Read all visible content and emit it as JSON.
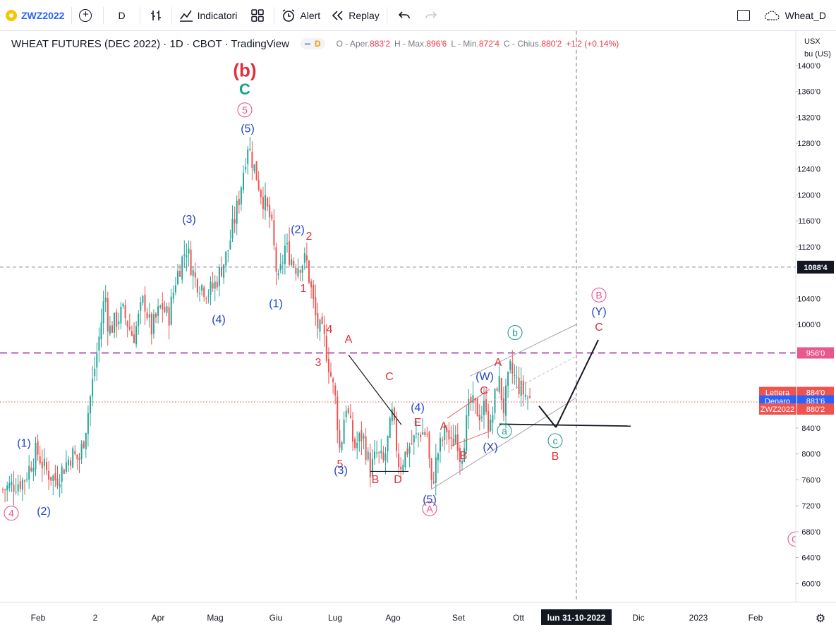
{
  "toolbar": {
    "symbol": "ZWZ2022",
    "interval": "D",
    "indicators_label": "Indicatori",
    "alert_label": "Alert",
    "replay_label": "Replay",
    "layout_name": "Wheat_D"
  },
  "legend": {
    "title": "WHEAT FUTURES (DEC 2022) · 1D · CBOT · TradingView",
    "badge": "D",
    "open_label": "O - Aper.",
    "open": "883'2",
    "high_label": "H - Max.",
    "high": "896'6",
    "low_label": "L - Min.",
    "low": "872'4",
    "close_label": "C - Chius.",
    "close": "880'2",
    "change": "+1'2 (+0.14%)"
  },
  "currency": {
    "line1": "USX",
    "line2": "bu (US)"
  },
  "colors": {
    "up": "#26a69a",
    "down": "#ef5350",
    "red_label": "#e0303b",
    "blue_label": "#2145c8",
    "green_label": "#1f9f8d",
    "pink_label": "#e8578d"
  },
  "chart_data": {
    "type": "candlestick",
    "title": "WHEAT FUTURES (DEC 2022)",
    "y_min": 570,
    "y_max": 1420,
    "y_ticks": [
      {
        "v": 1400,
        "label": "1400'0"
      },
      {
        "v": 1360,
        "label": "1360'0"
      },
      {
        "v": 1320,
        "label": "1320'0"
      },
      {
        "v": 1280,
        "label": "1280'0"
      },
      {
        "v": 1240,
        "label": "1240'0"
      },
      {
        "v": 1200,
        "label": "1200'0"
      },
      {
        "v": 1160,
        "label": "1160'0"
      },
      {
        "v": 1120,
        "label": "1120'0"
      },
      {
        "v": 1040,
        "label": "1040'0"
      },
      {
        "v": 1000,
        "label": "1000'0"
      },
      {
        "v": 840,
        "label": "840'0"
      },
      {
        "v": 800,
        "label": "800'0"
      },
      {
        "v": 760,
        "label": "760'0"
      },
      {
        "v": 720,
        "label": "720'0"
      },
      {
        "v": 680,
        "label": "680'0"
      },
      {
        "v": 640,
        "label": "640'0"
      },
      {
        "v": 600,
        "label": "600'0"
      }
    ],
    "x_ticks": [
      {
        "x": 0,
        "label": "Feb"
      },
      {
        "x": 81,
        "label": "2"
      },
      {
        "x": 170,
        "label": "Apr"
      },
      {
        "x": 251,
        "label": "Mag"
      },
      {
        "x": 337,
        "label": "Giu"
      },
      {
        "x": 421,
        "label": "Lug"
      },
      {
        "x": 503,
        "label": "Ago"
      },
      {
        "x": 596,
        "label": "Set"
      },
      {
        "x": 681,
        "label": "Ott"
      },
      {
        "x": 851,
        "label": "Dic"
      },
      {
        "x": 936,
        "label": "2023"
      },
      {
        "x": 1017,
        "label": "Feb"
      }
    ],
    "crosshair": {
      "x": 763,
      "v": 1088.5,
      "x_label": "lun 31-10-2022",
      "y_label": "1088'4"
    },
    "price_tags": [
      {
        "label": "956'0",
        "v": 956,
        "color": "#e8578d"
      },
      {
        "label_name": "Lettera",
        "label": "884'0",
        "v": 884,
        "color": "#ef5350"
      },
      {
        "label_name": "Denaro",
        "label": "881'6",
        "v": 881.75,
        "color": "#2962ff"
      },
      {
        "label_name": "ZWZ2022",
        "label": "880'2",
        "v": 880.25,
        "color": "#ef5350"
      }
    ],
    "pivots": [
      [
        -50,
        745
      ],
      [
        -20,
        760
      ],
      [
        -18,
        765
      ],
      [
        -10,
        785
      ],
      [
        -2,
        805
      ],
      [
        10,
        775
      ],
      [
        25,
        760
      ],
      [
        48,
        800
      ],
      [
        58,
        790
      ],
      [
        66,
        830
      ],
      [
        84,
        960
      ],
      [
        95,
        1050
      ],
      [
        100,
        990
      ],
      [
        120,
        1020
      ],
      [
        135,
        980
      ],
      [
        150,
        1040
      ],
      [
        160,
        990
      ],
      [
        175,
        1030
      ],
      [
        185,
        1010
      ],
      [
        195,
        1070
      ],
      [
        210,
        1120
      ],
      [
        222,
        1070
      ],
      [
        242,
        1050
      ],
      [
        250,
        1060
      ],
      [
        268,
        1110
      ],
      [
        284,
        1190
      ],
      [
        297,
        1280
      ],
      [
        307,
        1240
      ],
      [
        317,
        1200
      ],
      [
        330,
        1160
      ],
      [
        340,
        1060
      ],
      [
        350,
        1120
      ],
      [
        365,
        1090
      ],
      [
        380,
        1100
      ],
      [
        395,
        1000
      ],
      [
        405,
        980
      ],
      [
        410,
        950
      ],
      [
        422,
        880
      ],
      [
        428,
        800
      ],
      [
        436,
        880
      ],
      [
        448,
        810
      ],
      [
        460,
        830
      ],
      [
        471,
        775
      ],
      [
        480,
        800
      ],
      [
        490,
        785
      ],
      [
        502,
        860
      ],
      [
        512,
        780
      ],
      [
        525,
        810
      ],
      [
        542,
        835
      ],
      [
        552,
        830
      ],
      [
        557,
        745
      ],
      [
        566,
        800
      ],
      [
        579,
        840
      ],
      [
        585,
        810
      ],
      [
        593,
        835
      ],
      [
        599,
        790
      ],
      [
        612,
        880
      ],
      [
        628,
        860
      ],
      [
        635,
        880
      ],
      [
        640,
        830
      ],
      [
        652,
        920
      ],
      [
        660,
        870
      ],
      [
        669,
        930
      ],
      [
        684,
        900
      ],
      [
        700,
        880
      ]
    ],
    "waves": [
      {
        "t": "4",
        "x": -38,
        "v": 703,
        "color": "pink",
        "circle": true
      },
      {
        "t": "(1)",
        "x": -20,
        "v": 811,
        "color": "blue"
      },
      {
        "t": "(2)",
        "x": 8,
        "v": 706,
        "color": "blue"
      },
      {
        "t": "(3)",
        "x": 214,
        "v": 1157,
        "color": "blue"
      },
      {
        "t": "(4)",
        "x": 256,
        "v": 1002,
        "color": "blue"
      },
      {
        "t": "(b)",
        "x": 293,
        "v": 1383,
        "color": "red",
        "big": true
      },
      {
        "t": "C",
        "x": 293,
        "v": 1355,
        "color": "green",
        "big2": true
      },
      {
        "t": "5",
        "x": 293,
        "v": 1326,
        "color": "pink",
        "circle": true
      },
      {
        "t": "(5)",
        "x": 297,
        "v": 1297,
        "color": "blue"
      },
      {
        "t": "(1)",
        "x": 337,
        "v": 1027,
        "color": "blue"
      },
      {
        "t": "(2)",
        "x": 368,
        "v": 1141,
        "color": "blue"
      },
      {
        "t": "2",
        "x": 384,
        "v": 1131,
        "color": "red"
      },
      {
        "t": "1",
        "x": 376,
        "v": 1050,
        "color": "red"
      },
      {
        "t": "4",
        "x": 413,
        "v": 987,
        "color": "red"
      },
      {
        "t": "3",
        "x": 397,
        "v": 936,
        "color": "red"
      },
      {
        "t": "A",
        "x": 440,
        "v": 972,
        "color": "red"
      },
      {
        "t": "5",
        "x": 428,
        "v": 779,
        "color": "red"
      },
      {
        "t": "(3)",
        "x": 429,
        "v": 769,
        "color": "blue"
      },
      {
        "t": "C",
        "x": 498,
        "v": 914,
        "color": "red"
      },
      {
        "t": "(4)",
        "x": 538,
        "v": 866,
        "color": "blue"
      },
      {
        "t": "E",
        "x": 538,
        "v": 843,
        "color": "red"
      },
      {
        "t": "B",
        "x": 478,
        "v": 755,
        "color": "red"
      },
      {
        "t": "D",
        "x": 510,
        "v": 755,
        "color": "red"
      },
      {
        "t": "(5)",
        "x": 555,
        "v": 724,
        "color": "blue"
      },
      {
        "t": "A",
        "x": 555,
        "v": 710,
        "color": "pink",
        "circle": true
      },
      {
        "t": "A",
        "x": 575,
        "v": 837,
        "color": "red"
      },
      {
        "t": "B",
        "x": 603,
        "v": 792,
        "color": "red"
      },
      {
        "t": "C",
        "x": 632,
        "v": 892,
        "color": "red"
      },
      {
        "t": "(W)",
        "x": 633,
        "v": 914,
        "color": "blue"
      },
      {
        "t": "A",
        "x": 652,
        "v": 936,
        "color": "red"
      },
      {
        "t": "b",
        "x": 676,
        "v": 982,
        "color": "green",
        "circle": true
      },
      {
        "t": "a",
        "x": 661,
        "v": 830,
        "color": "green",
        "circle": true
      },
      {
        "t": "(X)",
        "x": 641,
        "v": 805,
        "color": "blue"
      },
      {
        "t": "c",
        "x": 733,
        "v": 815,
        "color": "green",
        "circle": true
      },
      {
        "t": "B",
        "x": 733,
        "v": 791,
        "color": "red"
      },
      {
        "t": "B",
        "x": 795,
        "v": 1040,
        "color": "pink",
        "circle": true
      },
      {
        "t": "(Y)",
        "x": 795,
        "v": 1014,
        "color": "blue"
      },
      {
        "t": "C",
        "x": 795,
        "v": 990,
        "color": "red"
      },
      {
        "t": "C",
        "x": 1073,
        "v": 663,
        "color": "pink",
        "circle": true
      }
    ]
  }
}
